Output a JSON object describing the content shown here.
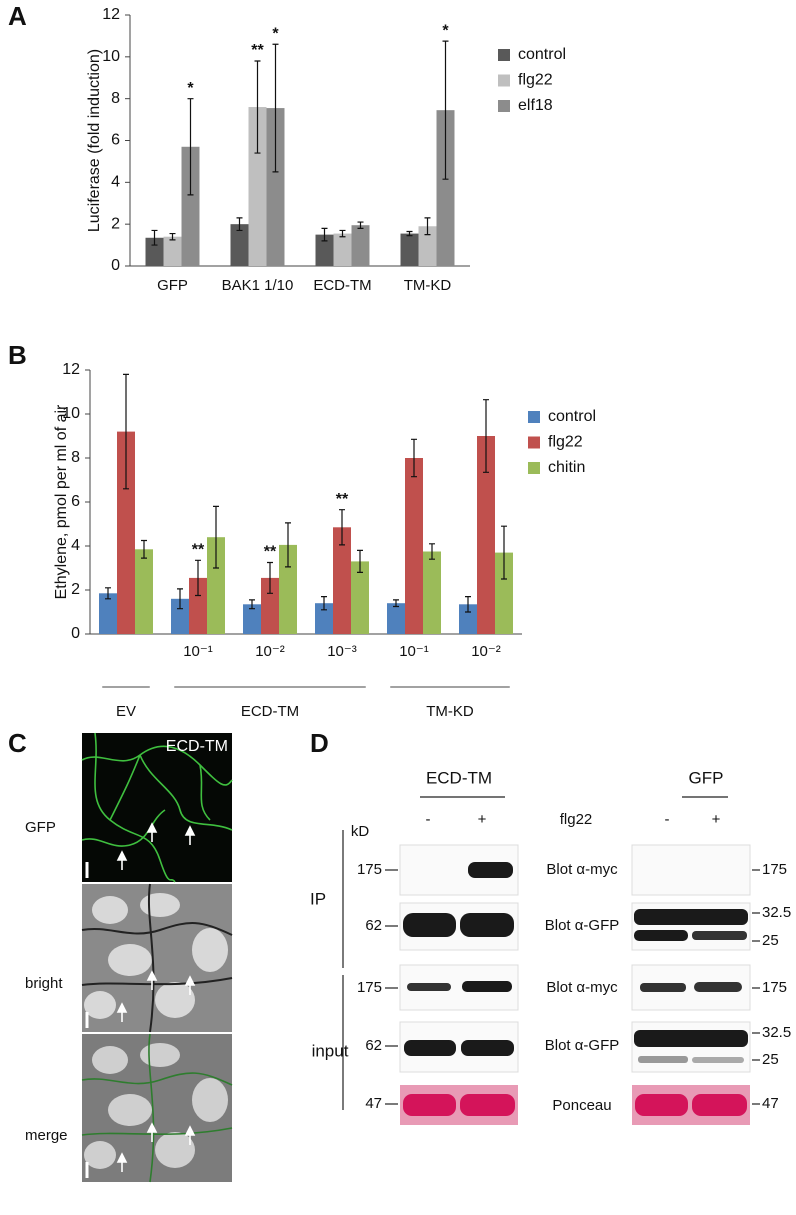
{
  "panel_labels": [
    "A",
    "B",
    "C",
    "D"
  ],
  "chart_data": [
    {
      "type": "bar",
      "ylabel": "Luciferase (fold induction)",
      "categories": [
        "GFP",
        "BAK1 1/10",
        "ECD-TM",
        "TM-KD"
      ],
      "ylim": [
        0,
        12
      ],
      "yticks": [
        0,
        2,
        4,
        6,
        8,
        10,
        12
      ],
      "series": [
        {
          "name": "control",
          "color": "#595959",
          "values": [
            1.35,
            2.0,
            1.5,
            1.55
          ],
          "errors": [
            0.35,
            0.3,
            0.3,
            0.1
          ],
          "significance": [
            null,
            null,
            null,
            null
          ]
        },
        {
          "name": "flg22",
          "color": "#bfbfbf",
          "values": [
            1.4,
            7.6,
            1.55,
            1.9
          ],
          "errors": [
            0.15,
            2.2,
            0.15,
            0.4
          ],
          "significance": [
            null,
            "**",
            null,
            null
          ]
        },
        {
          "name": "elf18",
          "color": "#8c8c8c",
          "values": [
            5.7,
            7.55,
            1.95,
            7.45
          ],
          "errors": [
            2.3,
            3.05,
            0.15,
            3.3
          ],
          "significance": [
            "*",
            "*",
            null,
            "*"
          ]
        }
      ]
    },
    {
      "type": "bar",
      "ylabel": "Ethylene, pmol per ml of air",
      "categories": [
        null,
        "10⁻¹",
        "10⁻²",
        "10⁻³",
        "10⁻¹",
        "10⁻²"
      ],
      "groups": [
        {
          "label": "EV",
          "categories": [
            0
          ]
        },
        {
          "label": "ECD-TM",
          "categories": [
            1,
            2,
            3
          ]
        },
        {
          "label": "TM-KD",
          "categories": [
            4,
            5
          ]
        }
      ],
      "ylim": [
        0,
        12
      ],
      "yticks": [
        0,
        2,
        4,
        6,
        8,
        10,
        12
      ],
      "series": [
        {
          "name": "control",
          "color": "#4f81bd",
          "values": [
            1.85,
            1.6,
            1.35,
            1.4,
            1.4,
            1.35
          ],
          "errors": [
            0.25,
            0.45,
            0.2,
            0.3,
            0.15,
            0.35
          ],
          "significance": [
            null,
            null,
            null,
            null,
            null,
            null
          ]
        },
        {
          "name": "flg22",
          "color": "#c0504d",
          "values": [
            9.2,
            2.55,
            2.55,
            4.85,
            8.0,
            9.0
          ],
          "errors": [
            2.6,
            0.8,
            0.7,
            0.8,
            0.85,
            1.65
          ],
          "significance": [
            null,
            "**",
            "**",
            "**",
            null,
            null
          ]
        },
        {
          "name": "chitin",
          "color": "#9bbb59",
          "values": [
            3.85,
            4.4,
            4.05,
            3.3,
            3.75,
            3.7
          ],
          "errors": [
            0.4,
            1.4,
            1.0,
            0.5,
            0.35,
            1.2
          ],
          "significance": [
            null,
            null,
            null,
            null,
            null,
            null
          ]
        }
      ]
    }
  ],
  "micrographs": {
    "overlay": "ECD-TM",
    "rows": [
      "GFP",
      "bright",
      "merge"
    ]
  },
  "blots": {
    "groups": [
      "ECD-TM",
      "GFP"
    ],
    "lanes": [
      "-",
      "+",
      "-",
      "+"
    ],
    "treatment": "flg22",
    "unit": "kD",
    "sections": [
      "IP",
      "input"
    ],
    "rows": [
      {
        "left": "175",
        "label": "Blot α-myc",
        "right": [
          "175"
        ]
      },
      {
        "left": "62",
        "label": "Blot α-GFP",
        "right": [
          "32.5",
          "25"
        ]
      },
      {
        "left": "175",
        "label": "Blot α-myc",
        "right": [
          "175"
        ]
      },
      {
        "left": "62",
        "label": "Blot α-GFP",
        "right": [
          "32.5",
          "25"
        ]
      },
      {
        "left": "47",
        "label": "Ponceau",
        "right": [
          "47"
        ]
      }
    ]
  }
}
